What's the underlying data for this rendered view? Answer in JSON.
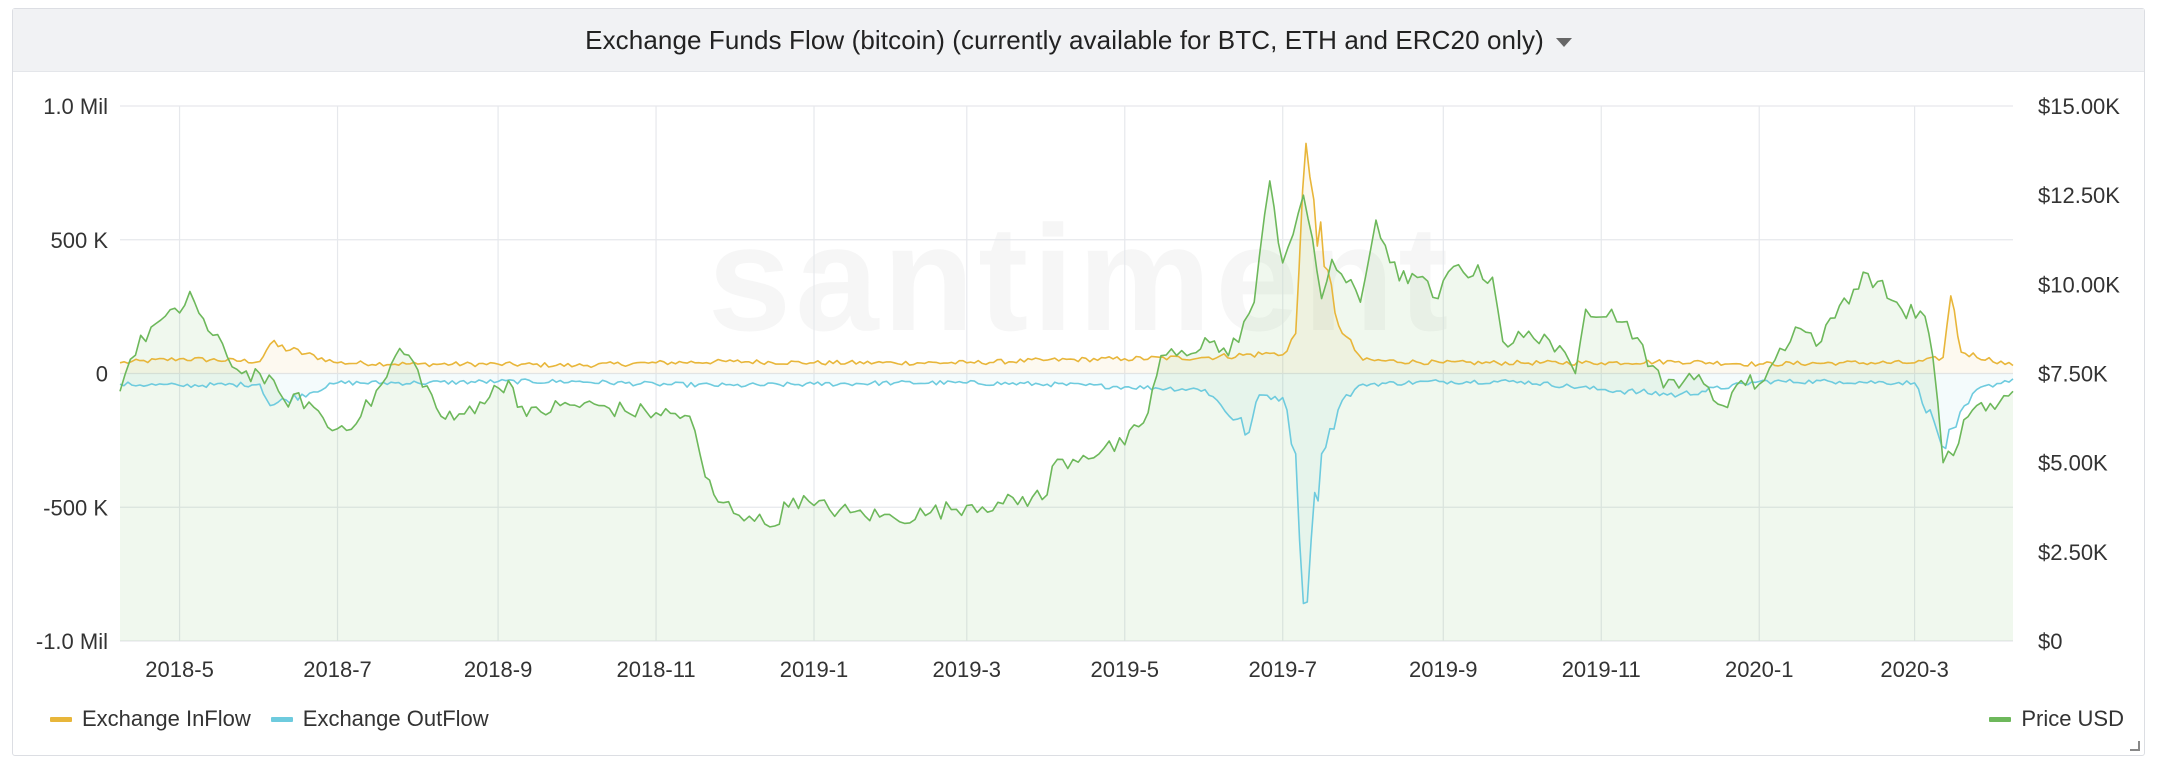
{
  "panel": {
    "title": "Exchange Funds Flow (bitcoin) (currently available for BTC, ETH and ERC20 only)",
    "menu_icon": "caret-down-icon",
    "watermark": "santiment"
  },
  "legend": {
    "left": [
      {
        "label": "Exchange InFlow",
        "color": "#e8b63a"
      },
      {
        "label": "Exchange OutFlow",
        "color": "#6ecbde"
      }
    ],
    "right": [
      {
        "label": "Price USD",
        "color": "#6db85b"
      }
    ]
  },
  "chart_data": {
    "type": "line",
    "x_start": "2018-04-08",
    "x_end": "2020-04-08",
    "x_ticks": [
      "2018-5",
      "2018-7",
      "2018-9",
      "2018-11",
      "2019-1",
      "2019-3",
      "2019-5",
      "2019-7",
      "2019-9",
      "2019-11",
      "2020-1",
      "2020-3"
    ],
    "y_left": {
      "ticks": [
        "1.0 Mil",
        "500 K",
        "0",
        "-500 K",
        "-1.0 Mil"
      ],
      "ylim": [
        -1000000,
        1000000
      ]
    },
    "y_right": {
      "ticks": [
        "$15.00K",
        "$12.50K",
        "$10.00K",
        "$7.50K",
        "$5.00K",
        "$2.50K",
        "$0"
      ],
      "ylim": [
        0,
        15000
      ]
    },
    "grid": true,
    "series": [
      {
        "name": "Exchange InFlow",
        "axis": "left",
        "color": "#e8b63a",
        "points": [
          [
            "2018-04-08",
            40000
          ],
          [
            "2018-05-01",
            55000
          ],
          [
            "2018-06-01",
            45000
          ],
          [
            "2018-06-05",
            110000
          ],
          [
            "2018-07-01",
            40000
          ],
          [
            "2018-08-01",
            35000
          ],
          [
            "2018-09-01",
            35000
          ],
          [
            "2018-10-01",
            30000
          ],
          [
            "2018-11-01",
            40000
          ],
          [
            "2018-12-01",
            45000
          ],
          [
            "2019-01-01",
            40000
          ],
          [
            "2019-02-01",
            40000
          ],
          [
            "2019-03-01",
            40000
          ],
          [
            "2019-04-01",
            50000
          ],
          [
            "2019-05-01",
            55000
          ],
          [
            "2019-06-01",
            60000
          ],
          [
            "2019-06-26",
            75000
          ],
          [
            "2019-07-01",
            70000
          ],
          [
            "2019-07-06",
            150000
          ],
          [
            "2019-07-10",
            860000
          ],
          [
            "2019-07-13",
            650000
          ],
          [
            "2019-07-17",
            400000
          ],
          [
            "2019-07-24",
            150000
          ],
          [
            "2019-08-01",
            50000
          ],
          [
            "2019-09-01",
            40000
          ],
          [
            "2019-10-01",
            40000
          ],
          [
            "2019-11-01",
            40000
          ],
          [
            "2019-12-01",
            45000
          ],
          [
            "2020-01-01",
            35000
          ],
          [
            "2020-02-01",
            40000
          ],
          [
            "2020-03-01",
            40000
          ],
          [
            "2020-03-12",
            60000
          ],
          [
            "2020-03-15",
            290000
          ],
          [
            "2020-03-19",
            80000
          ],
          [
            "2020-04-08",
            30000
          ]
        ]
      },
      {
        "name": "Exchange OutFlow",
        "axis": "left",
        "color": "#6ecbde",
        "points": [
          [
            "2018-04-08",
            -40000
          ],
          [
            "2018-05-01",
            -45000
          ],
          [
            "2018-06-01",
            -40000
          ],
          [
            "2018-06-05",
            -120000
          ],
          [
            "2018-07-01",
            -35000
          ],
          [
            "2018-08-01",
            -35000
          ],
          [
            "2018-09-01",
            -30000
          ],
          [
            "2018-10-01",
            -30000
          ],
          [
            "2018-11-01",
            -40000
          ],
          [
            "2018-12-01",
            -45000
          ],
          [
            "2019-01-01",
            -40000
          ],
          [
            "2019-02-01",
            -35000
          ],
          [
            "2019-03-01",
            -35000
          ],
          [
            "2019-04-01",
            -40000
          ],
          [
            "2019-05-01",
            -50000
          ],
          [
            "2019-06-01",
            -60000
          ],
          [
            "2019-06-18",
            -220000
          ],
          [
            "2019-06-22",
            -80000
          ],
          [
            "2019-07-01",
            -90000
          ],
          [
            "2019-07-06",
            -300000
          ],
          [
            "2019-07-09",
            -860000
          ],
          [
            "2019-07-12",
            -620000
          ],
          [
            "2019-07-16",
            -300000
          ],
          [
            "2019-07-24",
            -100000
          ],
          [
            "2019-08-01",
            -40000
          ],
          [
            "2019-09-01",
            -30000
          ],
          [
            "2019-10-01",
            -30000
          ],
          [
            "2019-11-01",
            -60000
          ],
          [
            "2019-12-01",
            -80000
          ],
          [
            "2020-01-01",
            -30000
          ],
          [
            "2020-02-01",
            -30000
          ],
          [
            "2020-03-01",
            -35000
          ],
          [
            "2020-03-13",
            -280000
          ],
          [
            "2020-03-17",
            -200000
          ],
          [
            "2020-03-25",
            -60000
          ],
          [
            "2020-04-08",
            -20000
          ]
        ]
      },
      {
        "name": "Price USD",
        "axis": "right",
        "color": "#6db85b",
        "points": [
          [
            "2018-04-08",
            7000
          ],
          [
            "2018-04-12",
            7900
          ],
          [
            "2018-04-20",
            8800
          ],
          [
            "2018-05-01",
            9200
          ],
          [
            "2018-05-05",
            9800
          ],
          [
            "2018-05-12",
            8700
          ],
          [
            "2018-05-25",
            7500
          ],
          [
            "2018-06-01",
            7500
          ],
          [
            "2018-06-10",
            6800
          ],
          [
            "2018-06-20",
            6700
          ],
          [
            "2018-06-29",
            5900
          ],
          [
            "2018-07-10",
            6300
          ],
          [
            "2018-07-20",
            7400
          ],
          [
            "2018-07-25",
            8200
          ],
          [
            "2018-08-01",
            7600
          ],
          [
            "2018-08-10",
            6300
          ],
          [
            "2018-08-15",
            6200
          ],
          [
            "2018-08-25",
            6700
          ],
          [
            "2018-09-05",
            7300
          ],
          [
            "2018-09-12",
            6300
          ],
          [
            "2018-09-25",
            6600
          ],
          [
            "2018-10-10",
            6600
          ],
          [
            "2018-10-20",
            6450
          ],
          [
            "2018-11-01",
            6400
          ],
          [
            "2018-11-14",
            6300
          ],
          [
            "2018-11-20",
            4600
          ],
          [
            "2018-11-25",
            3900
          ],
          [
            "2018-12-07",
            3500
          ],
          [
            "2018-12-15",
            3200
          ],
          [
            "2018-12-24",
            4000
          ],
          [
            "2019-01-01",
            3800
          ],
          [
            "2019-01-15",
            3600
          ],
          [
            "2019-02-01",
            3450
          ],
          [
            "2019-02-15",
            3600
          ],
          [
            "2019-03-01",
            3800
          ],
          [
            "2019-03-15",
            3850
          ],
          [
            "2019-04-01",
            4100
          ],
          [
            "2019-04-03",
            4900
          ],
          [
            "2019-04-15",
            5200
          ],
          [
            "2019-05-01",
            5500
          ],
          [
            "2019-05-10",
            6400
          ],
          [
            "2019-05-15",
            8000
          ],
          [
            "2019-05-25",
            8000
          ],
          [
            "2019-06-01",
            8500
          ],
          [
            "2019-06-10",
            8000
          ],
          [
            "2019-06-20",
            9500
          ],
          [
            "2019-06-26",
            12900
          ],
          [
            "2019-07-01",
            10600
          ],
          [
            "2019-07-09",
            12500
          ],
          [
            "2019-07-16",
            9600
          ],
          [
            "2019-07-20",
            10700
          ],
          [
            "2019-07-31",
            9500
          ],
          [
            "2019-08-06",
            11800
          ],
          [
            "2019-08-15",
            10100
          ],
          [
            "2019-08-20",
            10300
          ],
          [
            "2019-08-30",
            9600
          ],
          [
            "2019-09-05",
            10500
          ],
          [
            "2019-09-20",
            10200
          ],
          [
            "2019-09-24",
            8400
          ],
          [
            "2019-10-10",
            8600
          ],
          [
            "2019-10-22",
            7500
          ],
          [
            "2019-10-26",
            9300
          ],
          [
            "2019-11-05",
            9300
          ],
          [
            "2019-11-15",
            8500
          ],
          [
            "2019-11-25",
            7100
          ],
          [
            "2019-12-05",
            7500
          ],
          [
            "2019-12-18",
            6600
          ],
          [
            "2019-12-25",
            7300
          ],
          [
            "2020-01-01",
            7200
          ],
          [
            "2020-01-15",
            8800
          ],
          [
            "2020-01-25",
            8400
          ],
          [
            "2020-02-01",
            9400
          ],
          [
            "2020-02-12",
            10300
          ],
          [
            "2020-02-25",
            9300
          ],
          [
            "2020-03-05",
            9100
          ],
          [
            "2020-03-08",
            8000
          ],
          [
            "2020-03-12",
            5000
          ],
          [
            "2020-03-16",
            5200
          ],
          [
            "2020-03-20",
            6200
          ],
          [
            "2020-03-25",
            6600
          ],
          [
            "2020-04-01",
            6500
          ],
          [
            "2020-04-08",
            7000
          ]
        ]
      }
    ]
  }
}
